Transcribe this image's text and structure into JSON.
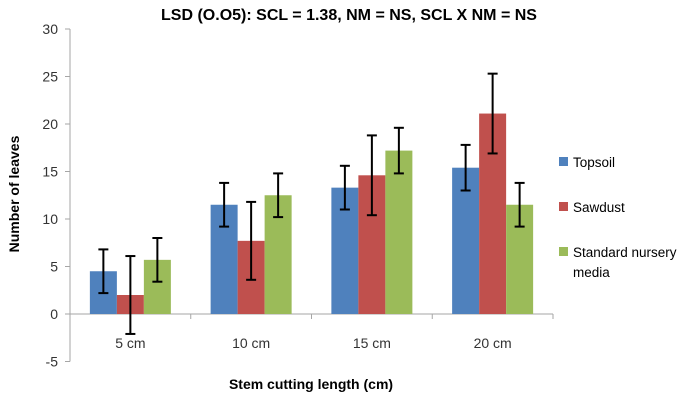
{
  "chart_data": {
    "type": "bar",
    "title": "LSD (O.O5): SCL = 1.38, NM = NS, SCL X NM = NS",
    "xlabel": "Stem cutting length (cm)",
    "ylabel": "Number of leaves",
    "ylim": [
      -5,
      30
    ],
    "yticks": [
      -5,
      0,
      5,
      10,
      15,
      20,
      25,
      30
    ],
    "categories": [
      "5 cm",
      "10 cm",
      "15 cm",
      "20 cm"
    ],
    "grid": false,
    "legend_position": "right",
    "series": [
      {
        "name": "Topsoil",
        "color": "#4F81BD",
        "values": [
          4.5,
          11.5,
          13.3,
          15.4
        ],
        "error": [
          2.3,
          2.3,
          2.3,
          2.4
        ]
      },
      {
        "name": "Sawdust",
        "color": "#C0504D",
        "values": [
          2.0,
          7.7,
          14.6,
          21.1
        ],
        "error": [
          4.1,
          4.1,
          4.2,
          4.2
        ]
      },
      {
        "name": "Standard nursery media",
        "color": "#9BBB59",
        "values": [
          5.7,
          12.5,
          17.2,
          11.5
        ],
        "error": [
          2.3,
          2.3,
          2.4,
          2.3
        ]
      }
    ]
  }
}
